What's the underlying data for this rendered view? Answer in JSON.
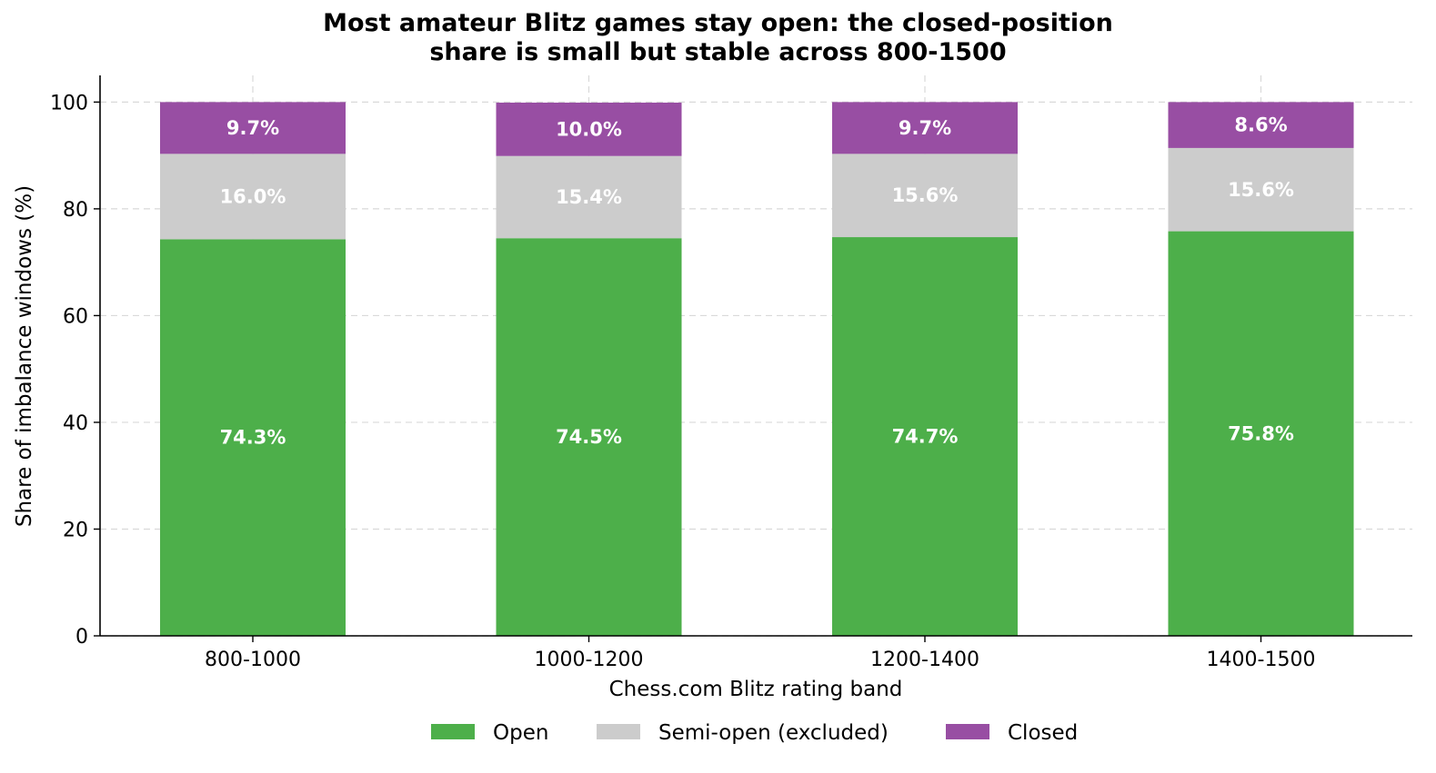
{
  "chart_data": {
    "type": "bar",
    "stacked": true,
    "title_lines": [
      "Most amateur Blitz games stay open: the closed-position",
      "share is small but stable across 800-1500"
    ],
    "xlabel": "Chess.com Blitz rating band",
    "ylabel": "Share of imbalance windows (%)",
    "ylim": [
      0,
      105
    ],
    "yticks": [
      "0",
      "20",
      "40",
      "60",
      "80",
      "100"
    ],
    "grid": true,
    "legend_position": "bottom-center",
    "categories": [
      "800-1000",
      "1000-1200",
      "1200-1400",
      "1400-1500"
    ],
    "series": [
      {
        "name": "Open",
        "color": "#4daf4a",
        "values": [
          74.3,
          74.5,
          74.7,
          75.8
        ],
        "labels": [
          "74.3%",
          "74.5%",
          "74.7%",
          "75.8%"
        ]
      },
      {
        "name": "Semi-open (excluded)",
        "color": "#cccccc",
        "values": [
          16.0,
          15.4,
          15.6,
          15.6
        ],
        "labels": [
          "16.0%",
          "15.4%",
          "15.6%",
          "15.6%"
        ]
      },
      {
        "name": "Closed",
        "color": "#984ea3",
        "values": [
          9.7,
          10.0,
          9.7,
          8.6
        ],
        "labels": [
          "9.7%",
          "10.0%",
          "9.7%",
          "8.6%"
        ]
      }
    ]
  }
}
